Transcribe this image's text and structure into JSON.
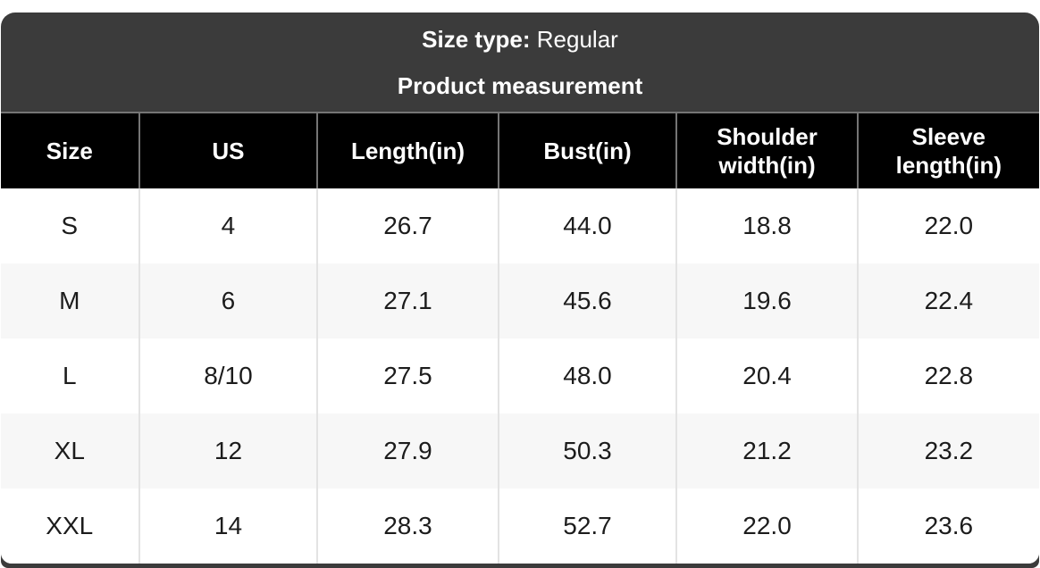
{
  "card": {
    "size_type_label": "Size type:",
    "size_type_value": "Regular",
    "subtitle": "Product measurement"
  },
  "table": {
    "headers": [
      "Size",
      "US",
      "Length(in)",
      "Bust(in)",
      "Shoulder width(in)",
      "Sleeve length(in)"
    ],
    "rows": [
      [
        "S",
        "4",
        "26.7",
        "44.0",
        "18.8",
        "22.0"
      ],
      [
        "M",
        "6",
        "27.1",
        "45.6",
        "19.6",
        "22.4"
      ],
      [
        "L",
        "8/10",
        "27.5",
        "48.0",
        "20.4",
        "22.8"
      ],
      [
        "XL",
        "12",
        "27.9",
        "50.3",
        "21.2",
        "23.2"
      ],
      [
        "XXL",
        "14",
        "28.3",
        "52.7",
        "22.0",
        "23.6"
      ]
    ]
  },
  "colors": {
    "card_bg": "#3b3b3b",
    "thead_bg": "#000000",
    "row_alt_bg": "#f7f7f7",
    "divider_dark": "#757575",
    "divider_light": "#e3e3e3",
    "text_light": "#ffffff",
    "text_dark": "#1c1c1c"
  }
}
